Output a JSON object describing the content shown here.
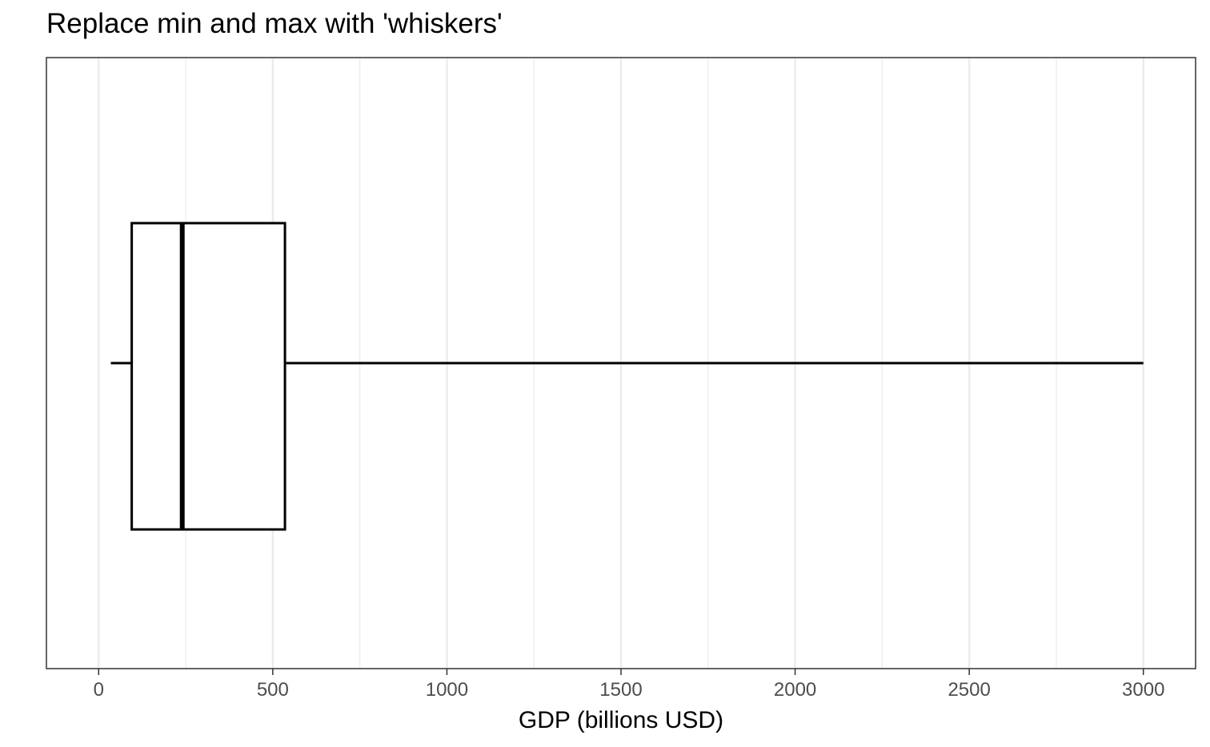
{
  "chart_data": {
    "type": "boxplot",
    "title": "Replace min and max with 'whiskers'",
    "xlabel": "GDP (billions USD)",
    "ylabel": "",
    "xlim": [
      -150,
      3150
    ],
    "x_ticks": [
      0,
      500,
      1000,
      1500,
      2000,
      2500,
      3000
    ],
    "x_tick_labels": [
      "0",
      "500",
      "1000",
      "1500",
      "2000",
      "2500",
      "3000"
    ],
    "minor_gridlines": [
      250,
      750,
      1250,
      1750,
      2250,
      2750
    ],
    "grid": true,
    "orientation": "horizontal",
    "box": {
      "whisker_low": 35,
      "q1": 95,
      "median": 240,
      "q3": 535,
      "whisker_high": 3000
    },
    "colors": {
      "line": "#000000",
      "grid_major": "#ebebeb",
      "grid_minor": "#ebebeb",
      "panel_border": "#333333",
      "tick_text": "#4d4d4d"
    }
  }
}
